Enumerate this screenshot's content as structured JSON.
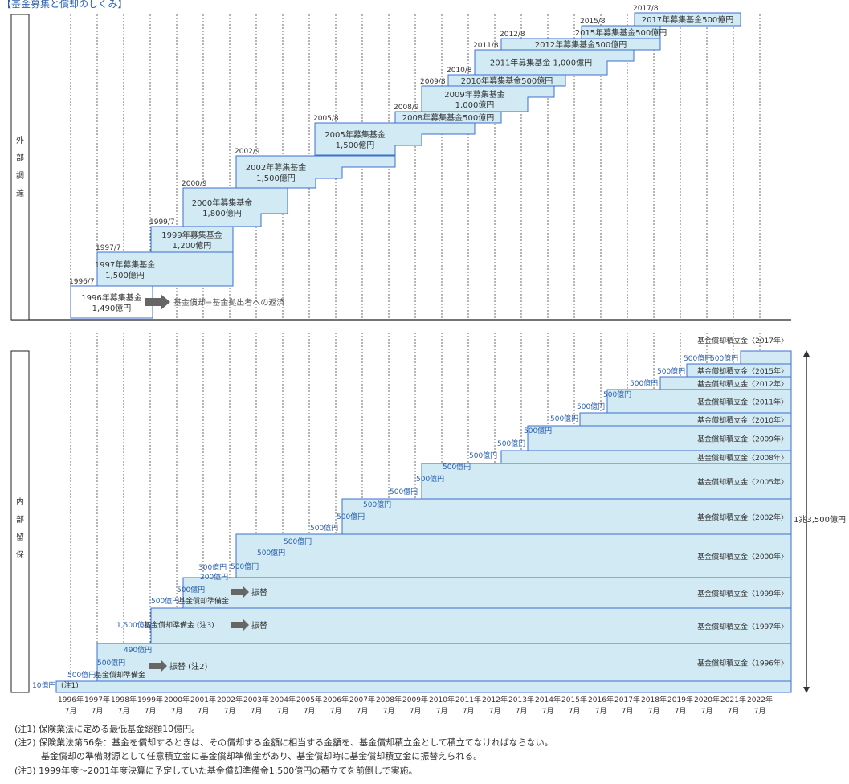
{
  "title": "【基金募集と償却のしくみ】",
  "sections": {
    "external_label": [
      "外",
      "部",
      "調",
      "達"
    ],
    "internal_label": [
      "内",
      "部",
      "留",
      "保"
    ]
  },
  "repayment_label": "基金償却=基金拠出者への返済",
  "funds": [
    {
      "date": "1996/7",
      "line1": "1996年募集基金",
      "line2": "1,490億円"
    },
    {
      "date": "1997/7",
      "line1": "1997年募集基金",
      "line2": "1,500億円"
    },
    {
      "date": "1999/7",
      "line1": "1999年募集基金",
      "line2": "1,200億円"
    },
    {
      "date": "2000/9",
      "line1": "2000年募集基金",
      "line2": "1,800億円"
    },
    {
      "date": "2002/9",
      "line1": "2002年募集基金",
      "line2": "1,500億円"
    },
    {
      "date": "2005/8",
      "line1": "2005年募集基金",
      "line2": "1,500億円"
    },
    {
      "date": "2008/9",
      "line1": "2008年募集基金500億円",
      "line2": ""
    },
    {
      "date": "2009/8",
      "line1": "2009年募集基金",
      "line2": "1,000億円"
    },
    {
      "date": "2010/8",
      "line1": "2010年募集基金500億円",
      "line2": ""
    },
    {
      "date": "2011/8",
      "line1": "2011年募集基金 1,000億円",
      "line2": ""
    },
    {
      "date": "2012/8",
      "line1": "2012年募集基金500億円",
      "line2": ""
    },
    {
      "date": "2015/8",
      "line1": "2015年募集基金500億円",
      "line2": ""
    },
    {
      "date": "2017/8",
      "line1": "2017年募集基金500億円",
      "line2": ""
    }
  ],
  "reserves": [
    "基金償却積立金〈2017年〉",
    "基金償却積立金〈2015年〉",
    "基金償却積立金〈2012年〉",
    "基金償却積立金〈2011年〉",
    "基金償却積立金〈2010年〉",
    "基金償却積立金〈2009年〉",
    "基金償却積立金〈2008年〉",
    "基金償却積立金〈2005年〉",
    "基金償却積立金〈2002年〉",
    "基金償却積立金〈2000年〉",
    "基金償却積立金〈1999年〉",
    "基金償却積立金〈1997年〉",
    "基金償却積立金〈1996年〉"
  ],
  "increments": [
    {
      "text": "10億円",
      "sub": "(注1)"
    },
    {
      "text": "500億円",
      "sub": "基金償却準備金"
    },
    {
      "text": "500億円"
    },
    {
      "text": "490億円"
    },
    {
      "text": "1,500億円",
      "sub": "基金償却準備金 (注3)"
    },
    {
      "text": "500億円",
      "sub": "基金償却準備金"
    },
    {
      "text": "500億円"
    },
    {
      "text": "300億円"
    },
    {
      "text": "200億円"
    },
    {
      "text": "500億円"
    },
    {
      "text": "500億円"
    },
    {
      "text": "500億円"
    },
    {
      "text": "500億円"
    },
    {
      "text": "500億円"
    },
    {
      "text": "500億円"
    },
    {
      "text": "500億円"
    },
    {
      "text": "500億円"
    },
    {
      "text": "500億円"
    },
    {
      "text": "500億円"
    },
    {
      "text": "500億円"
    },
    {
      "text": "500億円"
    },
    {
      "text": "500億円"
    },
    {
      "text": "500億円"
    },
    {
      "text": "500億円"
    }
  ],
  "transfers": [
    "振替 (注2)",
    "振替",
    "振替"
  ],
  "total": "1兆3,500億円",
  "years": [
    "1996年",
    "1997年",
    "1998年",
    "1999年",
    "2000年",
    "2001年",
    "2002年",
    "2003年",
    "2004年",
    "2005年",
    "2006年",
    "2007年",
    "2008年",
    "2009年",
    "2010年",
    "2011年",
    "2012年",
    "2013年",
    "2014年",
    "2015年",
    "2016年",
    "2017年",
    "2018年",
    "2019年",
    "2020年",
    "2021年",
    "2022年"
  ],
  "month_label": "7月",
  "notes": [
    "(注1) 保険業法に定める最低基金総額10億円。",
    "(注2) 保険業法第56条：基金を償却するときは、その償却する金額に相当する金額を、基金償却積立金として積立てなければならない。",
    "　　　基金償却の準備財源として任意積立金に基金償却準備金があり、基金償却時に基金償却積立金に振替えられる。",
    "(注3) 1999年度～2001年度決算に予定していた基金償却準備金1,500億円の積立てを前倒しで実施。"
  ],
  "colors": {
    "box_border": "#3a6fd0",
    "fill": "#d1eaf3",
    "arrow": "#666666",
    "accent": "#2b5fb0"
  }
}
